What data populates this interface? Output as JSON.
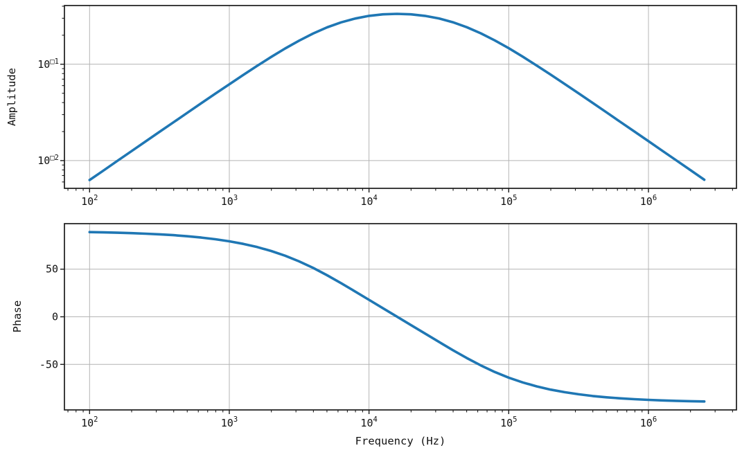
{
  "figure": {
    "background": "#ffffff",
    "line_color": "#1f77b4",
    "grid_color": "#b4b4b4",
    "spine_color": "#1a1a1a",
    "tick_color": "#1a1a1a"
  },
  "labels": {
    "xlabel": "Frequency (Hz)"
  },
  "chart_data": [
    {
      "id": "amplitude-response",
      "type": "line",
      "title": "",
      "xlabel": "",
      "ylabel": "Amplitude",
      "xscale": "log",
      "yscale": "log",
      "grid": true,
      "legend": "none",
      "xlim_log10": [
        1.82,
        6.63
      ],
      "ylim_log10": [
        -2.288,
        -0.391
      ],
      "x_major_ticks": [
        100,
        1000,
        10000,
        100000,
        1000000
      ],
      "x_tick_labels": [
        {
          "base": "10",
          "exp": "2"
        },
        {
          "base": "10",
          "exp": "3"
        },
        {
          "base": "10",
          "exp": "4"
        },
        {
          "base": "10",
          "exp": "5"
        },
        {
          "base": "10",
          "exp": "6"
        }
      ],
      "y_major_ticks": [
        0.01,
        0.1
      ],
      "y_tick_labels": [
        {
          "base": "10",
          "exp": "□2"
        },
        {
          "base": "10",
          "exp": "□1"
        }
      ],
      "frequency_hz": [
        100,
        125.9,
        158.5,
        199.5,
        251.2,
        316.2,
        398.1,
        501.2,
        631,
        794.3,
        1000,
        1259,
        1585,
        1995,
        2512,
        3162,
        3981,
        5012,
        6310,
        7943,
        10000,
        12589,
        15849,
        19953,
        25119,
        31623,
        39811,
        50119,
        63096,
        79433,
        100000,
        125893,
        158489,
        199526,
        251189,
        316228,
        398107,
        501187,
        630957,
        794328,
        1000000,
        1258925,
        1584893,
        1995262,
        2511886
      ],
      "values": [
        0.00628,
        0.0079,
        0.00995,
        0.01252,
        0.01576,
        0.01983,
        0.02494,
        0.03138,
        0.03942,
        0.04947,
        0.06199,
        0.07742,
        0.09631,
        0.11898,
        0.1456,
        0.17578,
        0.20833,
        0.24127,
        0.27197,
        0.298,
        0.3174,
        0.32927,
        0.33333,
        0.32953,
        0.3179,
        0.29873,
        0.27293,
        0.24231,
        0.20942,
        0.17684,
        0.14656,
        0.11982,
        0.09699,
        0.078,
        0.06246,
        0.04985,
        0.03973,
        0.03163,
        0.02515,
        0.02,
        0.01589,
        0.01263,
        0.01003,
        0.00797,
        0.00633
      ]
    },
    {
      "id": "phase-response",
      "type": "line",
      "title": "",
      "xlabel": "Frequency (Hz)",
      "ylabel": "Phase",
      "xscale": "log",
      "yscale": "linear",
      "grid": true,
      "legend": "none",
      "xlim_log10": [
        1.82,
        6.63
      ],
      "ylim": [
        -97.8,
        97.8
      ],
      "x_major_ticks": [
        100,
        1000,
        10000,
        100000,
        1000000
      ],
      "x_tick_labels": [
        {
          "base": "10",
          "exp": "2"
        },
        {
          "base": "10",
          "exp": "3"
        },
        {
          "base": "10",
          "exp": "4"
        },
        {
          "base": "10",
          "exp": "5"
        },
        {
          "base": "10",
          "exp": "6"
        }
      ],
      "y_major_ticks": [
        -50,
        0,
        50
      ],
      "y_tick_labels": [
        "-50",
        "0",
        "50"
      ],
      "frequency_hz": [
        100,
        125.9,
        158.5,
        199.5,
        251.2,
        316.2,
        398.1,
        501.2,
        631,
        794.3,
        1000,
        1259,
        1585,
        1995,
        2512,
        3162,
        3981,
        5012,
        6310,
        7943,
        10000,
        12589,
        15849,
        19953,
        25119,
        31623,
        39811,
        50119,
        63096,
        79433,
        100000,
        125893,
        158489,
        199526,
        251189,
        316228,
        398107,
        501187,
        630957,
        794328,
        1000000,
        1258925,
        1584893,
        1995262,
        2511886
      ],
      "values_deg": [
        88.92,
        88.64,
        88.29,
        87.85,
        87.29,
        86.59,
        85.71,
        84.6,
        83.21,
        81.46,
        79.29,
        76.57,
        73.21,
        69.09,
        64.1,
        58.18,
        51.31,
        43.63,
        35.32,
        26.62,
        17.79,
        8.95,
        0.14,
        -8.67,
        -17.5,
        -26.34,
        -35.04,
        -43.37,
        -51.08,
        -57.96,
        -63.91,
        -68.94,
        -73.08,
        -76.47,
        -79.2,
        -81.4,
        -83.15,
        -84.56,
        -85.67,
        -86.56,
        -87.27,
        -87.83,
        -88.28,
        -88.63,
        -88.91
      ]
    }
  ]
}
